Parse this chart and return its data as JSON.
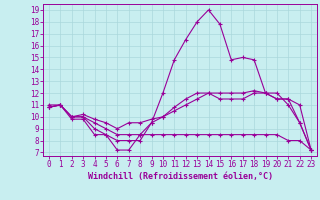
{
  "xlabel": "Windchill (Refroidissement éolien,°C)",
  "xlim": [
    -0.5,
    23.5
  ],
  "ylim": [
    6.7,
    19.5
  ],
  "xticks": [
    0,
    1,
    2,
    3,
    4,
    5,
    6,
    7,
    8,
    9,
    10,
    11,
    12,
    13,
    14,
    15,
    16,
    17,
    18,
    19,
    20,
    21,
    22,
    23
  ],
  "yticks": [
    7,
    8,
    9,
    10,
    11,
    12,
    13,
    14,
    15,
    16,
    17,
    18,
    19
  ],
  "bg_color": "#c8eef0",
  "line_color": "#990099",
  "grid_color": "#aad8dc",
  "line1_x": [
    0,
    1,
    2,
    3,
    4,
    5,
    6,
    7,
    8,
    9,
    10,
    11,
    12,
    13,
    14,
    15,
    16,
    17,
    18,
    19,
    20,
    21,
    22,
    23
  ],
  "line1_y": [
    11,
    11,
    10,
    10,
    9,
    8.5,
    7.2,
    7.2,
    8.5,
    9.5,
    12,
    14.8,
    16.5,
    18,
    19,
    17.8,
    14.8,
    15,
    14.8,
    12,
    12,
    11,
    9.5,
    7.2
  ],
  "line2_x": [
    0,
    1,
    2,
    3,
    4,
    5,
    6,
    7,
    8,
    9,
    10,
    11,
    12,
    13,
    14,
    15,
    16,
    17,
    18,
    19,
    20,
    21,
    22,
    23
  ],
  "line2_y": [
    10.8,
    11,
    9.8,
    9.8,
    8.5,
    8.5,
    8,
    8,
    8,
    9.5,
    10,
    10.8,
    11.5,
    12,
    12,
    11.5,
    11.5,
    11.5,
    12,
    12,
    11.5,
    11.5,
    9.5,
    7.2
  ],
  "line3_x": [
    0,
    1,
    2,
    3,
    4,
    5,
    6,
    7,
    8,
    9,
    10,
    11,
    12,
    13,
    14,
    15,
    16,
    17,
    18,
    19,
    20,
    21,
    22,
    23
  ],
  "line3_y": [
    10.8,
    11,
    10,
    10,
    9.5,
    9,
    8.5,
    8.5,
    8.5,
    8.5,
    8.5,
    8.5,
    8.5,
    8.5,
    8.5,
    8.5,
    8.5,
    8.5,
    8.5,
    8.5,
    8.5,
    8,
    8,
    7.2
  ],
  "line4_x": [
    0,
    1,
    2,
    3,
    4,
    5,
    6,
    7,
    8,
    9,
    10,
    11,
    12,
    13,
    14,
    15,
    16,
    17,
    18,
    19,
    20,
    21,
    22,
    23
  ],
  "line4_y": [
    10.8,
    11,
    10,
    10.2,
    9.8,
    9.5,
    9,
    9.5,
    9.5,
    9.8,
    10,
    10.5,
    11,
    11.5,
    12,
    12,
    12,
    12,
    12.2,
    12,
    11.5,
    11.5,
    11,
    7.2
  ]
}
